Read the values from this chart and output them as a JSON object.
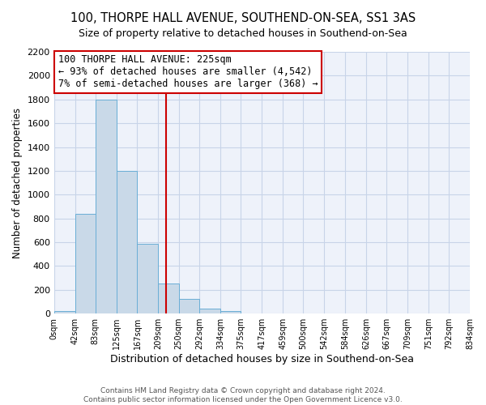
{
  "title": "100, THORPE HALL AVENUE, SOUTHEND-ON-SEA, SS1 3AS",
  "subtitle": "Size of property relative to detached houses in Southend-on-Sea",
  "xlabel": "Distribution of detached houses by size in Southend-on-Sea",
  "ylabel": "Number of detached properties",
  "bar_edges": [
    0,
    42,
    83,
    125,
    167,
    209,
    250,
    292,
    334,
    375,
    417,
    459,
    500,
    542,
    584,
    626,
    667,
    709,
    751,
    792,
    834
  ],
  "bar_heights": [
    25,
    840,
    1800,
    1200,
    590,
    255,
    125,
    45,
    25,
    0,
    0,
    0,
    0,
    0,
    0,
    0,
    0,
    0,
    0,
    0
  ],
  "bar_color": "#c9d9e8",
  "bar_edge_color": "#6aaed6",
  "vline_x": 225,
  "vline_color": "#cc0000",
  "annotation_box_text": "100 THORPE HALL AVENUE: 225sqm\n← 93% of detached houses are smaller (4,542)\n7% of semi-detached houses are larger (368) →",
  "annotation_fontsize": 8.5,
  "ylim": [
    0,
    2200
  ],
  "yticks": [
    0,
    200,
    400,
    600,
    800,
    1000,
    1200,
    1400,
    1600,
    1800,
    2000,
    2200
  ],
  "tick_labels": [
    "0sqm",
    "42sqm",
    "83sqm",
    "125sqm",
    "167sqm",
    "209sqm",
    "250sqm",
    "292sqm",
    "334sqm",
    "375sqm",
    "417sqm",
    "459sqm",
    "500sqm",
    "542sqm",
    "584sqm",
    "626sqm",
    "667sqm",
    "709sqm",
    "751sqm",
    "792sqm",
    "834sqm"
  ],
  "grid_color": "#c8d4e8",
  "background_color": "#eef2fa",
  "title_fontsize": 10.5,
  "subtitle_fontsize": 9,
  "xlabel_fontsize": 9,
  "ylabel_fontsize": 8.5,
  "footer_line1": "Contains HM Land Registry data © Crown copyright and database right 2024.",
  "footer_line2": "Contains public sector information licensed under the Open Government Licence v3.0.",
  "footer_fontsize": 6.5
}
